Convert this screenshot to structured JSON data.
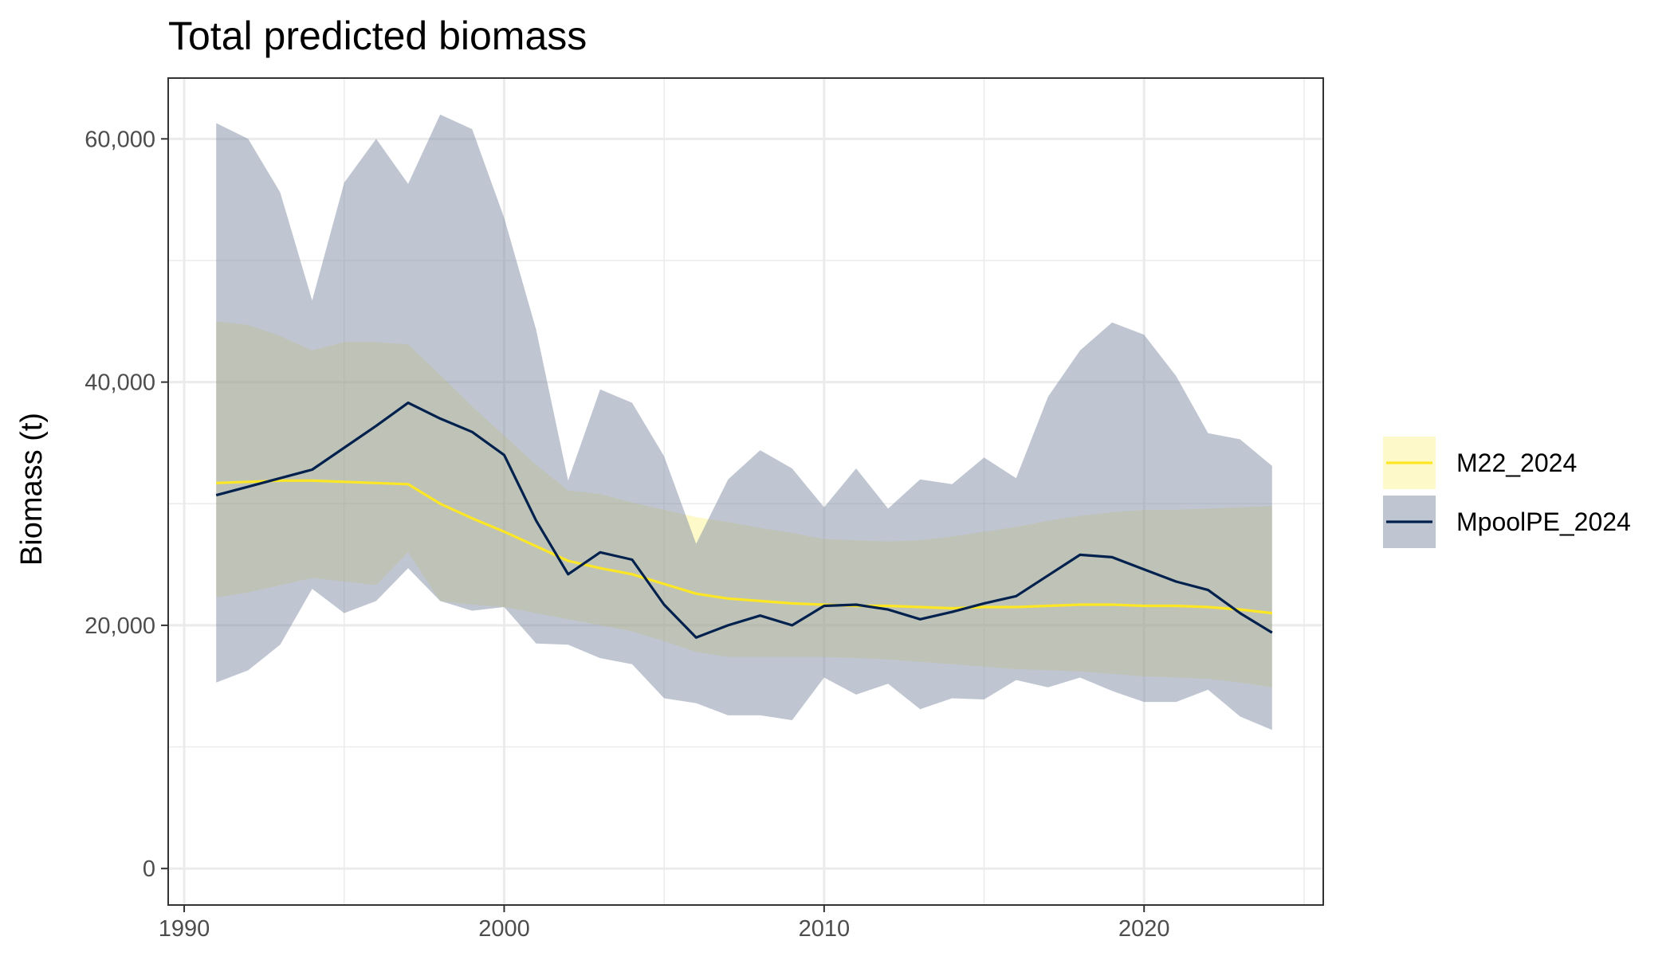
{
  "chart_data": {
    "type": "line",
    "title": "Total predicted biomass",
    "xlabel": "",
    "ylabel": "Biomass (t)",
    "xlim": [
      1989.5,
      2025.6
    ],
    "ylim": [
      -3000,
      65000
    ],
    "x_ticks": [
      1990,
      2000,
      2010,
      2020
    ],
    "x_tick_labels": [
      "1990",
      "2000",
      "2010",
      "2020"
    ],
    "y_ticks": [
      0,
      20000,
      40000,
      60000
    ],
    "y_tick_labels": [
      "0",
      "20,000",
      "40,000",
      "60,000"
    ],
    "grid": true,
    "legend_position": "right",
    "x": [
      1991,
      1992,
      1993,
      1994,
      1995,
      1996,
      1997,
      1998,
      1999,
      2000,
      2001,
      2002,
      2003,
      2004,
      2005,
      2006,
      2007,
      2008,
      2009,
      2010,
      2011,
      2012,
      2013,
      2014,
      2015,
      2016,
      2017,
      2018,
      2019,
      2020,
      2021,
      2022,
      2023,
      2024
    ],
    "series": [
      {
        "name": "M22_2024",
        "line_color": "#fde725",
        "ribbon_color": "#fde725",
        "ribbon_opacity": 0.25,
        "values": [
          31700,
          31800,
          31900,
          31900,
          31800,
          31700,
          31600,
          30000,
          28800,
          27700,
          26500,
          25300,
          24700,
          24200,
          23400,
          22600,
          22200,
          22000,
          21800,
          21700,
          21600,
          21600,
          21500,
          21400,
          21500,
          21500,
          21600,
          21700,
          21700,
          21600,
          21600,
          21500,
          21300,
          21000
        ],
        "lower": [
          22300,
          22700,
          23300,
          23900,
          23600,
          23300,
          26000,
          22000,
          21700,
          21500,
          21000,
          20500,
          20000,
          19500,
          18700,
          17800,
          17400,
          17400,
          17400,
          17400,
          17300,
          17200,
          17000,
          16800,
          16600,
          16400,
          16300,
          16200,
          16000,
          15800,
          15700,
          15600,
          15300,
          14900
        ],
        "upper": [
          45000,
          44700,
          43800,
          42600,
          43300,
          43300,
          43100,
          40600,
          38000,
          35600,
          33200,
          31100,
          30800,
          30100,
          29500,
          28900,
          28500,
          28000,
          27600,
          27100,
          27000,
          26900,
          27000,
          27300,
          27700,
          28100,
          28600,
          29000,
          29300,
          29500,
          29500,
          29600,
          29700,
          29800
        ]
      },
      {
        "name": "MpoolPE_2024",
        "line_color": "#00204d",
        "ribbon_color": "#7f8ea6",
        "ribbon_opacity": 0.5,
        "values": [
          30700,
          31400,
          32100,
          32800,
          34600,
          36400,
          38300,
          37000,
          35900,
          34000,
          28600,
          24200,
          26000,
          25400,
          21700,
          19000,
          20000,
          20800,
          20000,
          21600,
          21700,
          21300,
          20500,
          21100,
          21800,
          22400,
          24100,
          25800,
          25600,
          24600,
          23600,
          22900,
          21000,
          19400
        ],
        "lower": [
          15300,
          16300,
          18400,
          23000,
          21000,
          22000,
          24700,
          22000,
          21200,
          21500,
          18500,
          18400,
          17300,
          16800,
          14000,
          13600,
          12600,
          12600,
          12200,
          15700,
          14300,
          15200,
          13100,
          14000,
          13900,
          15500,
          14900,
          15700,
          14600,
          13700,
          13700,
          14700,
          12500,
          11400
        ],
        "upper": [
          61300,
          60000,
          55600,
          46700,
          56400,
          60000,
          56300,
          62000,
          60800,
          53500,
          44300,
          31900,
          39400,
          38300,
          33900,
          26700,
          32000,
          34400,
          32900,
          29700,
          32900,
          29600,
          32000,
          31600,
          33800,
          32100,
          38800,
          42600,
          44900,
          43900,
          40500,
          35800,
          35300,
          33100
        ]
      }
    ]
  }
}
